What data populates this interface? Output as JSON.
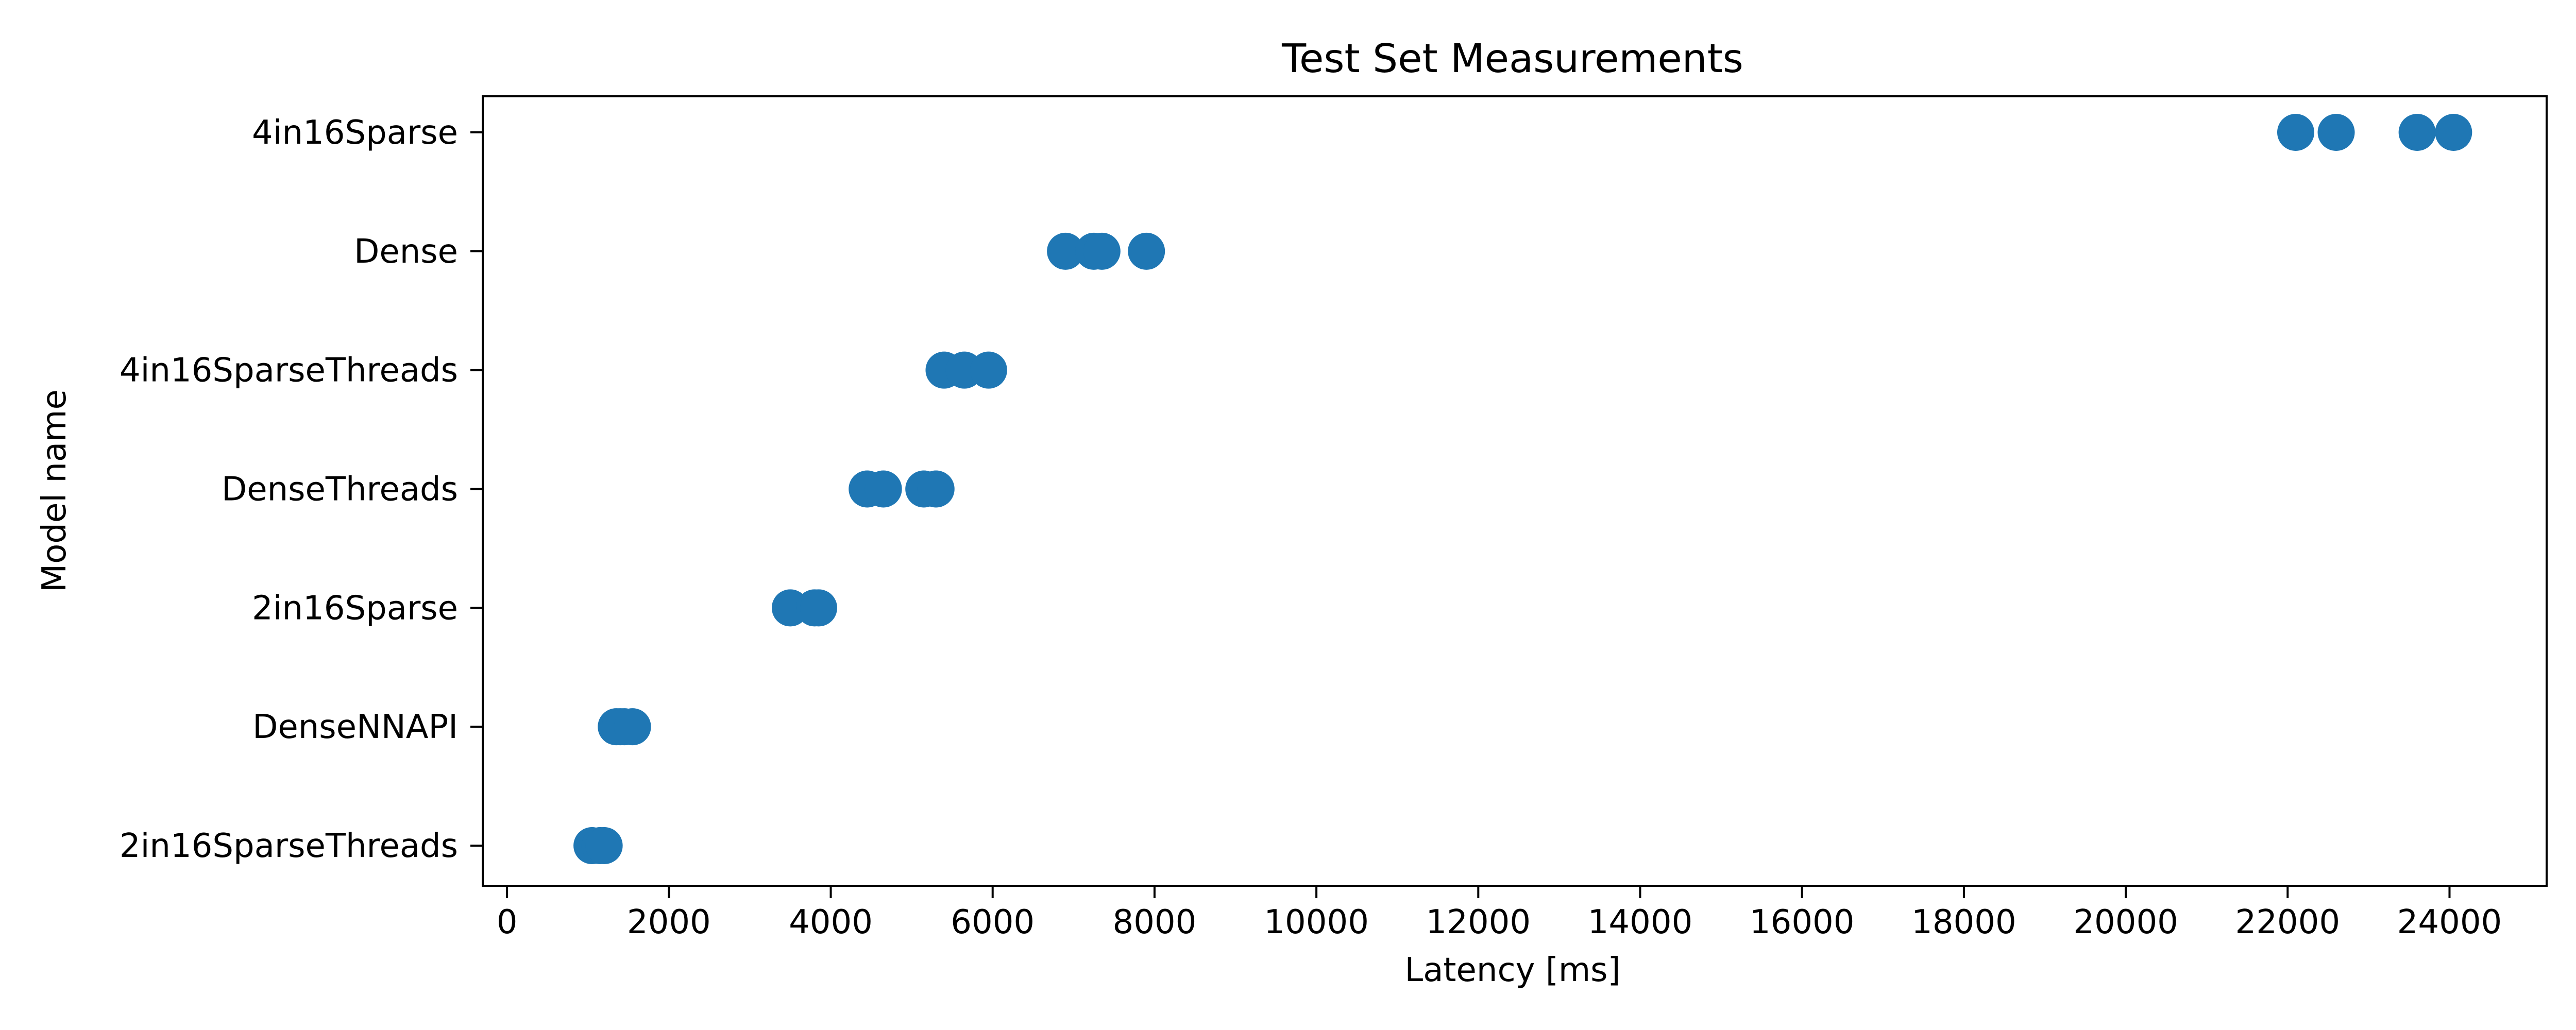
{
  "chart_data": {
    "type": "scatter",
    "title": "Test Set Measurements",
    "xlabel": "Latency [ms]",
    "ylabel": "Model name",
    "xlim": [
      -300,
      25200
    ],
    "xticks": [
      0,
      2000,
      4000,
      6000,
      8000,
      10000,
      12000,
      14000,
      16000,
      18000,
      20000,
      22000,
      24000
    ],
    "grid": false,
    "marker_color": "#1f77b4",
    "categories": [
      "4in16Sparse",
      "Dense",
      "4in16SparseThreads",
      "DenseThreads",
      "2in16Sparse",
      "DenseNNAPI",
      "2in16SparseThreads"
    ],
    "series": [
      {
        "category": "4in16Sparse",
        "x": [
          22100,
          22600,
          23600,
          24050
        ]
      },
      {
        "category": "Dense",
        "x": [
          6900,
          7250,
          7350,
          7900
        ]
      },
      {
        "category": "4in16SparseThreads",
        "x": [
          5400,
          5650,
          5950
        ]
      },
      {
        "category": "DenseThreads",
        "x": [
          4450,
          4650,
          5150,
          5300
        ]
      },
      {
        "category": "2in16Sparse",
        "x": [
          3500,
          3800,
          3850
        ]
      },
      {
        "category": "DenseNNAPI",
        "x": [
          1350,
          1400,
          1450,
          1550
        ]
      },
      {
        "category": "2in16SparseThreads",
        "x": [
          1050,
          1150,
          1200
        ]
      }
    ]
  }
}
